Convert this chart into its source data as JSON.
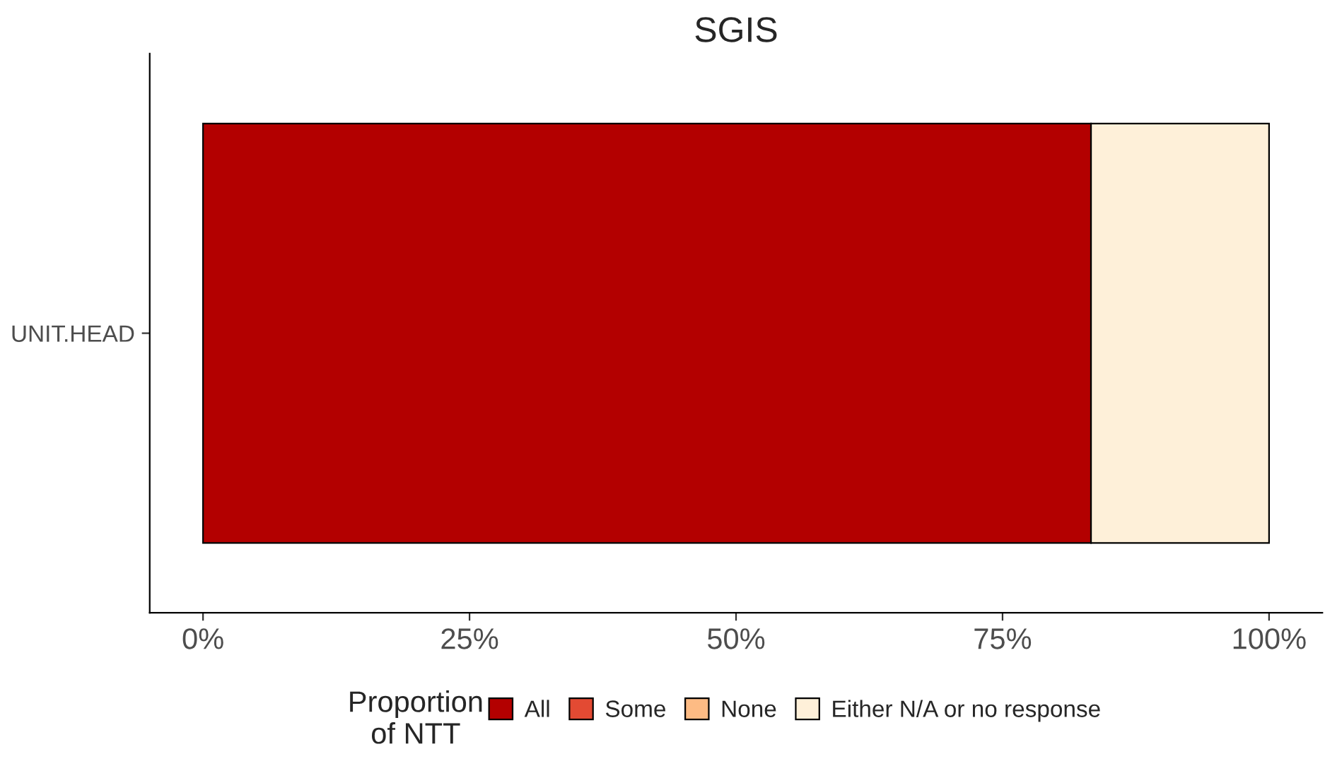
{
  "chart_data": {
    "type": "bar",
    "orientation": "horizontal",
    "stacked": true,
    "title": "SGIS",
    "legend_title": "Proportion\nof NTT",
    "categories": [
      "UNIT.HEAD"
    ],
    "series": [
      {
        "name": "All",
        "color": "#b30000",
        "values": [
          83.3
        ]
      },
      {
        "name": "Some",
        "color": "#e34a33",
        "values": [
          0
        ]
      },
      {
        "name": "None",
        "color": "#fdbb84",
        "values": [
          0
        ]
      },
      {
        "name": "Either N/A or no response",
        "color": "#fef0d9",
        "values": [
          16.7
        ]
      }
    ],
    "xlim": [
      -5,
      105
    ],
    "xticks": [
      {
        "value": 0,
        "label": "0%"
      },
      {
        "value": 25,
        "label": "25%"
      },
      {
        "value": 50,
        "label": "50%"
      },
      {
        "value": 75,
        "label": "75%"
      },
      {
        "value": 100,
        "label": "100%"
      }
    ],
    "grid": false,
    "legend": "bottom"
  }
}
